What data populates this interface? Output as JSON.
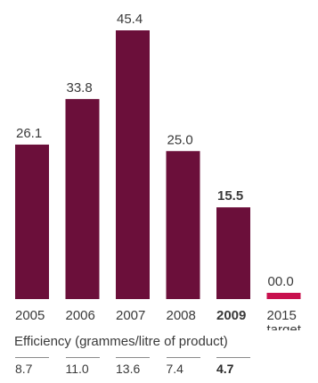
{
  "chart_data": {
    "type": "bar",
    "categories": [
      "2005",
      "2006",
      "2007",
      "2008",
      "2009",
      "2015"
    ],
    "category_sublabels": [
      "",
      "",
      "",
      "",
      "",
      "target"
    ],
    "values": [
      26.1,
      33.8,
      45.4,
      25.0,
      15.5,
      0.0
    ],
    "value_labels": [
      "26.1",
      "33.8",
      "45.4",
      "25.0",
      "15.5",
      "00.0"
    ],
    "highlight_index": 4,
    "ylim": [
      0,
      45.4
    ],
    "grid": false,
    "colors": {
      "bar": "#6b0f3a",
      "target": "#c8104e",
      "text": "#3a3a3a",
      "rule": "#8a8a8a"
    }
  },
  "efficiency": {
    "title": "Efficiency (grammes/litre of product)",
    "values": [
      "8.7",
      "11.0",
      "13.6",
      "7.4",
      "4.7"
    ]
  }
}
